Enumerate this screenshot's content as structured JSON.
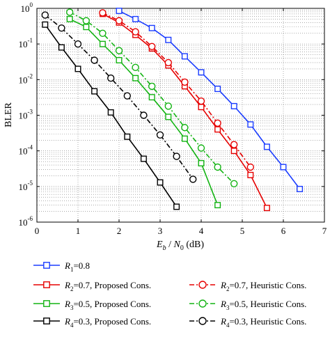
{
  "chart_data": {
    "type": "line",
    "xlabel": "E_b / N_0 (dB)",
    "xlabel_parts": {
      "e": "E",
      "b": "b",
      "slash": " / ",
      "n": "N",
      "zero": "0",
      "unit": " (dB)"
    },
    "ylabel": "BLER",
    "xlim": [
      0,
      7
    ],
    "ylim": [
      1e-06,
      1
    ],
    "yscale": "log",
    "grid": "dotted, major and minor",
    "legend_position": "bottom, below plot",
    "x_ticks": [
      "0",
      "1",
      "2",
      "3",
      "4",
      "5",
      "6",
      "7"
    ],
    "y_ticks": [
      {
        "base": "10",
        "exp": "0",
        "value": 1
      },
      {
        "base": "10",
        "exp": "-1",
        "value": 0.1
      },
      {
        "base": "10",
        "exp": "-2",
        "value": 0.01
      },
      {
        "base": "10",
        "exp": "-3",
        "value": 0.001
      },
      {
        "base": "10",
        "exp": "-4",
        "value": 0.0001
      },
      {
        "base": "10",
        "exp": "-5",
        "value": 1e-05
      },
      {
        "base": "10",
        "exp": "-6",
        "value": 1e-06
      }
    ],
    "series": [
      {
        "name": "R1=0.8",
        "label_var": "R",
        "label_sub": "1",
        "label_rest": "=0.8",
        "color": "#1a3cff",
        "marker": "square",
        "dash": "solid",
        "x": [
          2.0,
          2.4,
          2.8,
          3.2,
          3.6,
          4.0,
          4.4,
          4.8,
          5.2,
          5.6,
          6.0,
          6.4
        ],
        "y": [
          0.85,
          0.5,
          0.28,
          0.13,
          0.045,
          0.016,
          0.0055,
          0.0018,
          0.00055,
          0.00013,
          3.5e-05,
          8.5e-06
        ]
      },
      {
        "name": "R2=0.7, Proposed Cons.",
        "label_var": "R",
        "label_sub": "2",
        "label_rest": "=0.7, Proposed Cons.",
        "color": "#e60000",
        "marker": "square",
        "dash": "solid",
        "x": [
          1.6,
          2.0,
          2.4,
          2.8,
          3.2,
          3.6,
          4.0,
          4.4,
          4.8,
          5.2,
          5.6
        ],
        "y": [
          0.7,
          0.4,
          0.18,
          0.075,
          0.025,
          0.0065,
          0.0017,
          0.0004,
          0.0001,
          2.1e-05,
          2.5e-06
        ]
      },
      {
        "name": "R3=0.5, Proposed Cons.",
        "label_var": "R",
        "label_sub": "3",
        "label_rest": "=0.5, Proposed Cons.",
        "color": "#12b312",
        "marker": "square",
        "dash": "solid",
        "x": [
          0.8,
          1.2,
          1.6,
          2.0,
          2.4,
          2.8,
          3.2,
          3.6,
          4.0,
          4.4
        ],
        "y": [
          0.5,
          0.3,
          0.1,
          0.035,
          0.011,
          0.0032,
          0.0009,
          0.00022,
          4.5e-05,
          3e-06
        ]
      },
      {
        "name": "R4=0.3, Proposed Cons.",
        "label_var": "R",
        "label_sub": "4",
        "label_rest": "=0.3, Proposed Cons.",
        "color": "#000000",
        "marker": "square",
        "dash": "solid",
        "x": [
          0.2,
          0.6,
          1.0,
          1.4,
          1.8,
          2.2,
          2.6,
          3.0,
          3.4
        ],
        "y": [
          0.35,
          0.08,
          0.02,
          0.0047,
          0.0012,
          0.00025,
          6e-05,
          1.3e-05,
          2.7e-06
        ]
      },
      {
        "name": "R2=0.7, Heuristic Cons.",
        "label_var": "R",
        "label_sub": "2",
        "label_rest": "=0.7, Heuristic Cons.",
        "color": "#e60000",
        "marker": "circle",
        "dash": "dashdot",
        "x": [
          1.6,
          2.0,
          2.4,
          2.8,
          3.2,
          3.6,
          4.0,
          4.4,
          4.8,
          5.2
        ],
        "y": [
          0.75,
          0.45,
          0.22,
          0.085,
          0.03,
          0.0085,
          0.0025,
          0.0006,
          0.00015,
          3.5e-05
        ]
      },
      {
        "name": "R3=0.5, Heuristic Cons.",
        "label_var": "R",
        "label_sub": "3",
        "label_rest": "=0.5, Heuristic Cons.",
        "color": "#12b312",
        "marker": "circle",
        "dash": "dashdot",
        "x": [
          0.8,
          1.2,
          1.6,
          2.0,
          2.4,
          2.8,
          3.2,
          3.6,
          4.0,
          4.4,
          4.8
        ],
        "y": [
          0.78,
          0.45,
          0.2,
          0.065,
          0.022,
          0.0065,
          0.0018,
          0.00045,
          0.00012,
          3.5e-05,
          1.2e-05
        ]
      },
      {
        "name": "R4=0.3, Heuristic Cons.",
        "label_var": "R",
        "label_sub": "4",
        "label_rest": "=0.3, Heuristic Cons.",
        "color": "#000000",
        "marker": "circle",
        "dash": "dashdot",
        "x": [
          0.2,
          0.6,
          1.0,
          1.4,
          1.8,
          2.2,
          2.6,
          3.0,
          3.4,
          3.8
        ],
        "y": [
          0.65,
          0.28,
          0.1,
          0.035,
          0.011,
          0.0035,
          0.001,
          0.00028,
          7e-05,
          1.6e-05
        ]
      }
    ],
    "legend": [
      {
        "series": 0,
        "column": 0,
        "row": 0
      },
      {
        "series": 1,
        "column": 0,
        "row": 1
      },
      {
        "series": 4,
        "column": 1,
        "row": 1
      },
      {
        "series": 2,
        "column": 0,
        "row": 2
      },
      {
        "series": 5,
        "column": 1,
        "row": 2
      },
      {
        "series": 3,
        "column": 0,
        "row": 3
      },
      {
        "series": 6,
        "column": 1,
        "row": 3
      }
    ]
  }
}
